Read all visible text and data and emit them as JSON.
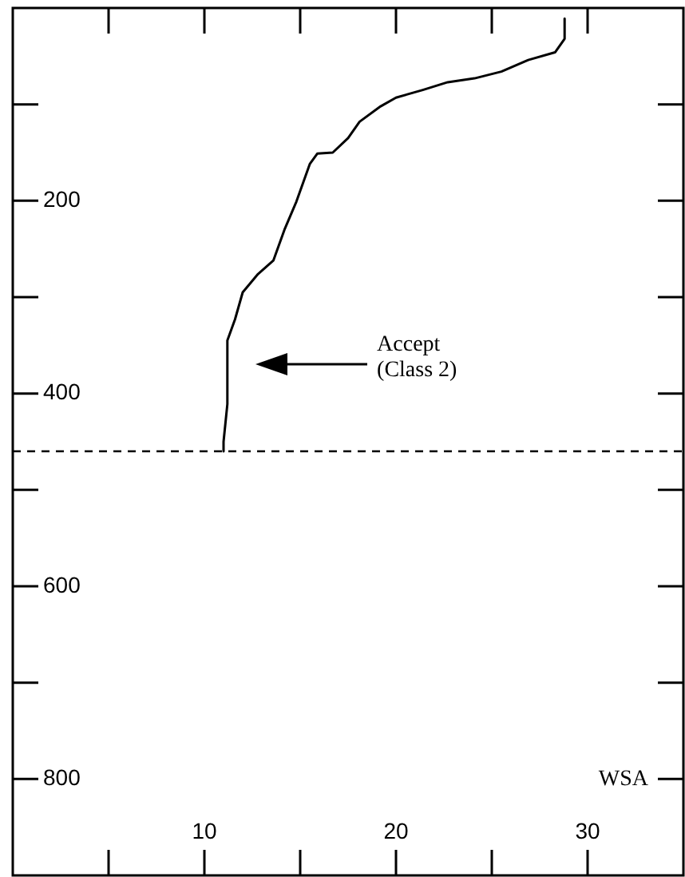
{
  "chart_data": {
    "type": "line",
    "xlabel": "WSA",
    "series": [
      {
        "color": "#000000",
        "x": [
          28.8,
          28.8,
          28.3,
          26.9,
          25.5,
          24.1,
          22.7,
          21.4,
          20,
          19.2,
          18.1,
          17.5,
          16.7,
          15.9,
          15.5,
          14.8,
          14.2,
          13.6,
          12.8,
          12,
          11.6,
          11.2,
          11.2,
          11,
          11
        ],
        "values": [
          11,
          32,
          46,
          54,
          66,
          73,
          77,
          85,
          93,
          102,
          118,
          135,
          150,
          151,
          162,
          201,
          229,
          262,
          276,
          295,
          323,
          345,
          411,
          450,
          460
        ]
      }
    ],
    "xlim": [
      0,
      35
    ],
    "xticks": [
      {
        "value": 5,
        "label": null
      },
      10,
      {
        "value": 15,
        "label": null
      },
      20,
      {
        "value": 25,
        "label": null
      },
      30
    ],
    "ylim": [
      900,
      0
    ],
    "yticks": [
      {
        "value": 100,
        "label": null
      },
      200,
      {
        "value": 300,
        "label": null
      },
      400,
      {
        "value": 500,
        "label": null
      },
      600,
      {
        "value": 700,
        "label": null
      },
      800
    ],
    "ref_lines": [
      {
        "axis": "y",
        "value": 460,
        "line_style": "dashed",
        "color": "#000000"
      }
    ],
    "annotations": [
      "Accept\n(Class 2)"
    ],
    "marker": "none",
    "line_style": "solid",
    "grid": false,
    "legend": false
  }
}
